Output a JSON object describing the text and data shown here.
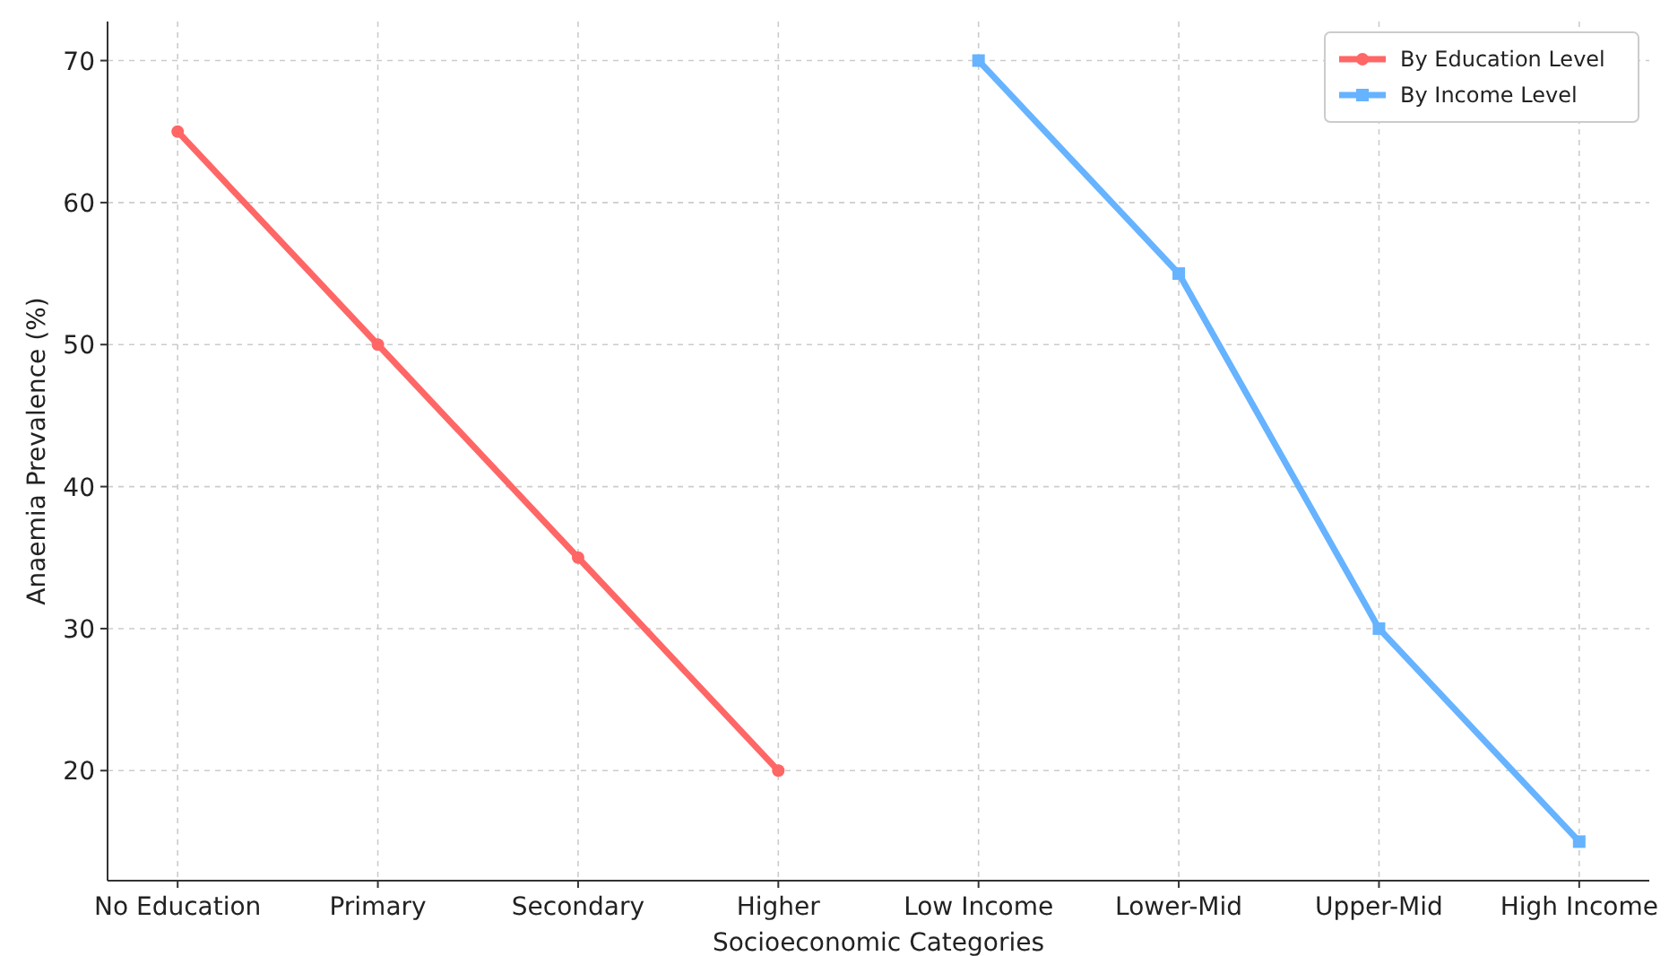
{
  "chart_data": {
    "type": "line",
    "xlabel": "Socioeconomic Categories",
    "ylabel": "Anaemia Prevalence (%)",
    "categories": [
      "No Education",
      "Primary",
      "Secondary",
      "Higher",
      "Low Income",
      "Lower-Mid",
      "Upper-Mid",
      "High Income"
    ],
    "series": [
      {
        "name": "By Education Level",
        "color": "#ff6666",
        "marker": "circle",
        "values": [
          65,
          50,
          35,
          20,
          null,
          null,
          null,
          null
        ]
      },
      {
        "name": "By Income Level",
        "color": "#66b3ff",
        "marker": "square",
        "values": [
          null,
          null,
          null,
          null,
          70,
          55,
          30,
          15
        ]
      }
    ],
    "ylim": [
      12.25,
      72.75
    ],
    "yticks": [
      20,
      30,
      40,
      50,
      60,
      70
    ],
    "grid": true,
    "legend": "top right",
    "line_style": "solid"
  }
}
